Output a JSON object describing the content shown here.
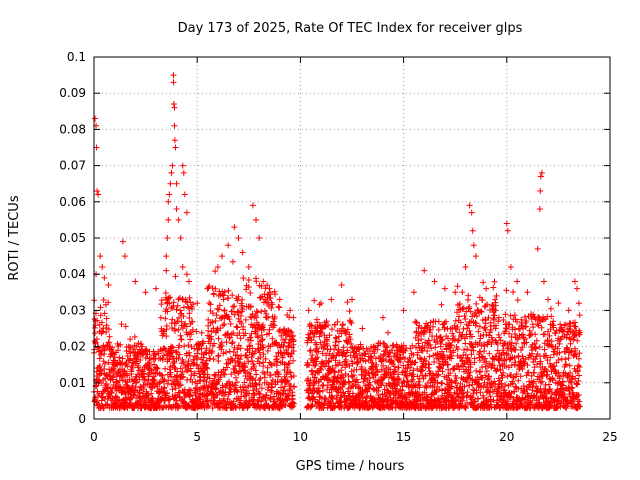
{
  "chart_data": {
    "type": "scatter",
    "title": "Day 173 of 2025, Rate Of TEC Index for receiver glps",
    "xlabel": "GPS time / hours",
    "ylabel": "ROTI / TECUs",
    "xlim": [
      0,
      25
    ],
    "ylim": [
      0,
      0.1
    ],
    "x_ticks": [
      "0",
      "5",
      "10",
      "15",
      "20",
      "25"
    ],
    "y_ticks": [
      "0",
      "0.01",
      "0.02",
      "0.03",
      "0.04",
      "0.05",
      "0.06",
      "0.07",
      "0.08",
      "0.09",
      "0.1"
    ],
    "grid": true,
    "marker": "+",
    "color": "#ff0000",
    "data_gap": [
      9.7,
      10.3
    ],
    "series": [
      {
        "values": [
          [
            0.05,
            0.083
          ],
          [
            0.1,
            0.081
          ],
          [
            0.12,
            0.075
          ],
          [
            0.15,
            0.063
          ],
          [
            0.2,
            0.062
          ],
          [
            0.3,
            0.045
          ],
          [
            0.1,
            0.04
          ],
          [
            0.4,
            0.042
          ],
          [
            0.5,
            0.039
          ],
          [
            0.7,
            0.037
          ],
          [
            1.4,
            0.049
          ],
          [
            1.5,
            0.045
          ],
          [
            2.0,
            0.038
          ],
          [
            2.5,
            0.035
          ],
          [
            3.0,
            0.036
          ],
          [
            3.5,
            0.041
          ],
          [
            3.5,
            0.045
          ],
          [
            3.55,
            0.05
          ],
          [
            3.6,
            0.055
          ],
          [
            3.6,
            0.06
          ],
          [
            3.65,
            0.062
          ],
          [
            3.7,
            0.065
          ],
          [
            3.75,
            0.068
          ],
          [
            3.8,
            0.07
          ],
          [
            3.85,
            0.095
          ],
          [
            3.85,
            0.093
          ],
          [
            3.87,
            0.087
          ],
          [
            3.9,
            0.086
          ],
          [
            3.9,
            0.081
          ],
          [
            3.92,
            0.077
          ],
          [
            3.95,
            0.075
          ],
          [
            4.0,
            0.065
          ],
          [
            4.0,
            0.058
          ],
          [
            4.1,
            0.055
          ],
          [
            4.2,
            0.05
          ],
          [
            4.3,
            0.07
          ],
          [
            4.35,
            0.068
          ],
          [
            4.4,
            0.062
          ],
          [
            4.5,
            0.057
          ],
          [
            4.3,
            0.042
          ],
          [
            4.5,
            0.04
          ],
          [
            4.6,
            0.038
          ],
          [
            5.0,
            0.032
          ],
          [
            5.5,
            0.036
          ],
          [
            6.0,
            0.042
          ],
          [
            6.2,
            0.045
          ],
          [
            6.5,
            0.048
          ],
          [
            6.8,
            0.053
          ],
          [
            7.0,
            0.05
          ],
          [
            7.2,
            0.046
          ],
          [
            7.5,
            0.042
          ],
          [
            7.7,
            0.059
          ],
          [
            7.85,
            0.055
          ],
          [
            8.0,
            0.05
          ],
          [
            8.2,
            0.038
          ],
          [
            8.5,
            0.036
          ],
          [
            9.0,
            0.033
          ],
          [
            9.5,
            0.03
          ],
          [
            10.4,
            0.03
          ],
          [
            11.0,
            0.032
          ],
          [
            11.5,
            0.033
          ],
          [
            12.0,
            0.037
          ],
          [
            12.5,
            0.033
          ],
          [
            13.0,
            0.025
          ],
          [
            14.0,
            0.028
          ],
          [
            15.0,
            0.03
          ],
          [
            15.5,
            0.035
          ],
          [
            16.0,
            0.041
          ],
          [
            16.5,
            0.038
          ],
          [
            17.0,
            0.036
          ],
          [
            17.5,
            0.035
          ],
          [
            18.0,
            0.042
          ],
          [
            18.2,
            0.059
          ],
          [
            18.3,
            0.057
          ],
          [
            18.35,
            0.052
          ],
          [
            18.4,
            0.048
          ],
          [
            18.5,
            0.045
          ],
          [
            19.0,
            0.036
          ],
          [
            19.5,
            0.034
          ],
          [
            20.0,
            0.054
          ],
          [
            20.05,
            0.052
          ],
          [
            20.2,
            0.042
          ],
          [
            20.5,
            0.038
          ],
          [
            21.0,
            0.035
          ],
          [
            21.5,
            0.047
          ],
          [
            21.6,
            0.058
          ],
          [
            21.62,
            0.063
          ],
          [
            21.65,
            0.067
          ],
          [
            21.7,
            0.068
          ],
          [
            21.8,
            0.038
          ],
          [
            22.0,
            0.033
          ],
          [
            22.5,
            0.032
          ],
          [
            23.0,
            0.03
          ],
          [
            23.3,
            0.038
          ],
          [
            23.4,
            0.036
          ]
        ]
      }
    ]
  }
}
